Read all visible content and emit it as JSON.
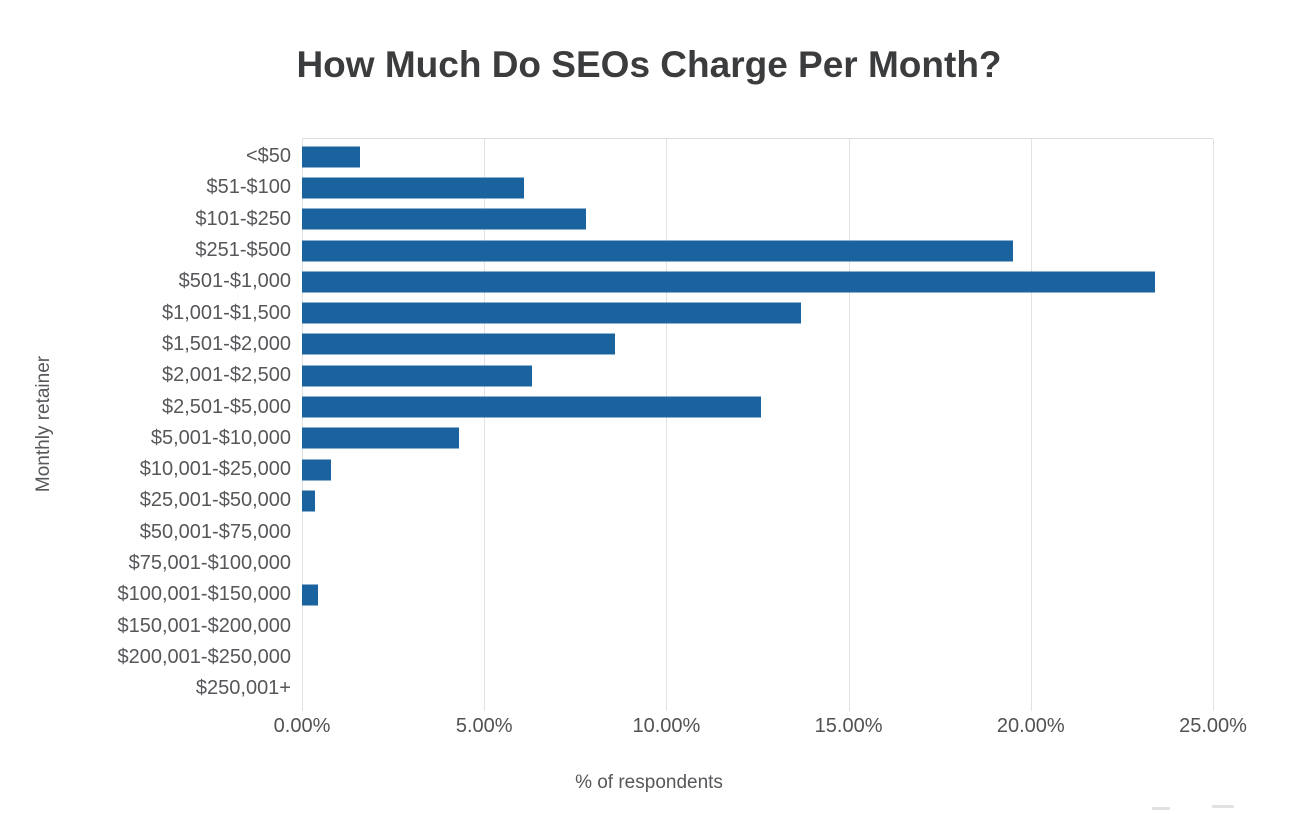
{
  "chart_data": {
    "type": "bar",
    "orientation": "horizontal",
    "title": "How Much Do SEOs Charge Per Month?",
    "xlabel": "% of respondents",
    "ylabel": "Monthly retainer",
    "categories": [
      "<$50",
      "$51-$100",
      "$101-$250",
      "$251-$500",
      "$501-$1,000",
      "$1,001-$1,500",
      "$1,501-$2,000",
      "$2,001-$2,500",
      "$2,501-$5,000",
      "$5,001-$10,000",
      "$10,001-$25,000",
      "$25,001-$50,000",
      "$50,001-$75,000",
      "$75,001-$100,000",
      "$100,001-$150,000",
      "$150,001-$200,000",
      "$200,001-$250,000",
      "$250,001+"
    ],
    "values": [
      1.6,
      6.1,
      7.8,
      19.5,
      23.4,
      13.7,
      8.6,
      6.3,
      12.6,
      4.3,
      0.8,
      0.35,
      0,
      0,
      0.45,
      0,
      0,
      0
    ],
    "xlim": [
      0,
      25
    ],
    "x_tick_labels": [
      "0.00%",
      "5.00%",
      "10.00%",
      "15.00%",
      "20.00%",
      "25.00%"
    ],
    "x_tick_values": [
      0,
      5,
      10,
      15,
      20,
      25
    ],
    "grid": "vertical-only",
    "legend_position": "none",
    "bar_color": "#1b639e"
  }
}
